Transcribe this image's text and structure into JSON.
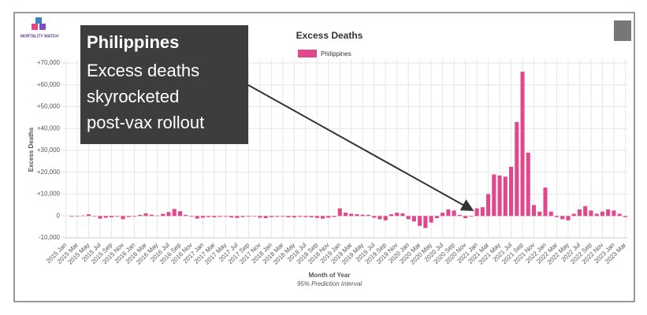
{
  "chart_data": {
    "type": "bar",
    "title": "Excess Deaths",
    "logo": "MORTALITY WATCH",
    "y_label": "Excess Deaths",
    "x_label": "Month of Year",
    "subtitle": "95% Prediction Interval",
    "legend_position": "top",
    "annotation": {
      "heading": "Philippines",
      "lines": [
        "Excess deaths",
        "skyrocketed",
        "post-vax rollout"
      ]
    },
    "ylim": [
      -10000,
      70000
    ],
    "yticks": [
      {
        "value": -10000,
        "label": "-10,000"
      },
      0,
      {
        "value": 10000,
        "label": "+10,000"
      },
      {
        "value": 20000,
        "label": "+20,000"
      },
      {
        "value": 30000,
        "label": "+30,000"
      },
      {
        "value": 40000,
        "label": "+40,000"
      },
      {
        "value": 50000,
        "label": "+50,000"
      },
      {
        "value": 60000,
        "label": "+60,000"
      },
      {
        "value": 70000,
        "label": "+70,000"
      }
    ],
    "grid": true,
    "categories": [
      "2015 Jan",
      null,
      "2015 Mar",
      null,
      "2015 May",
      null,
      "2015 Jul",
      null,
      "2015 Sep",
      null,
      "2015 Nov",
      null,
      "2016 Jan",
      null,
      "2016 Mar",
      null,
      "2016 May",
      null,
      "2016 Jul",
      null,
      "2016 Sep",
      null,
      "2016 Nov",
      null,
      "2017 Jan",
      null,
      "2017 Mar",
      null,
      "2017 May",
      null,
      "2017 Jul",
      null,
      "2017 Sep",
      null,
      "2017 Nov",
      null,
      "2018 Jan",
      null,
      "2018 Mar",
      null,
      "2018 May",
      null,
      "2018 Jul",
      null,
      "2018 Sep",
      null,
      "2018 Nov",
      null,
      "2019 Jan",
      null,
      "2019 Mar",
      null,
      "2019 May",
      null,
      "2019 Jul",
      null,
      "2019 Sep",
      null,
      "2019 Nov",
      null,
      "2020 Jan",
      null,
      "2020 Mar",
      null,
      "2020 May",
      null,
      "2020 Jul",
      null,
      "2020 Sep",
      null,
      "2020 Nov",
      null,
      "2021 Jan",
      null,
      "2021 Mar",
      null,
      "2021 May",
      null,
      "2021 Jul",
      null,
      "2021 Sep",
      null,
      "2021 Nov",
      null,
      "2022 Jan",
      null,
      "2022 Mar",
      null,
      "2022 May",
      null,
      "2022 Jul",
      null,
      "2022 Sep",
      null,
      "2022 Nov",
      null,
      "2023 Jan",
      null,
      "2023 Mar"
    ],
    "series": [
      {
        "name": "Philippines",
        "color": "#e0488b",
        "values": [
          0,
          -300,
          -200,
          200,
          800,
          -200,
          -1200,
          -800,
          -600,
          -300,
          -1500,
          -500,
          -300,
          500,
          1200,
          600,
          200,
          1000,
          1800,
          3200,
          2200,
          500,
          -300,
          -1200,
          -800,
          -500,
          -600,
          -400,
          -300,
          -700,
          -900,
          -500,
          -300,
          -200,
          -800,
          -1000,
          -500,
          -400,
          -300,
          -600,
          -700,
          -400,
          -500,
          -600,
          -900,
          -1200,
          -800,
          -500,
          3500,
          1500,
          1000,
          800,
          600,
          500,
          -800,
          -1500,
          -2000,
          800,
          1500,
          1200,
          -1500,
          -2500,
          -4500,
          -5500,
          -3000,
          -1000,
          1500,
          3000,
          2500,
          500,
          -1000,
          -300,
          3500,
          4000,
          10000,
          19000,
          18500,
          18000,
          22500,
          43000,
          66000,
          29000,
          5000,
          2000,
          13000,
          2000,
          -500,
          -1500,
          -2000,
          1000,
          3000,
          4500,
          2500,
          1000,
          2000,
          3000,
          2500,
          1000,
          -500
        ]
      }
    ]
  }
}
